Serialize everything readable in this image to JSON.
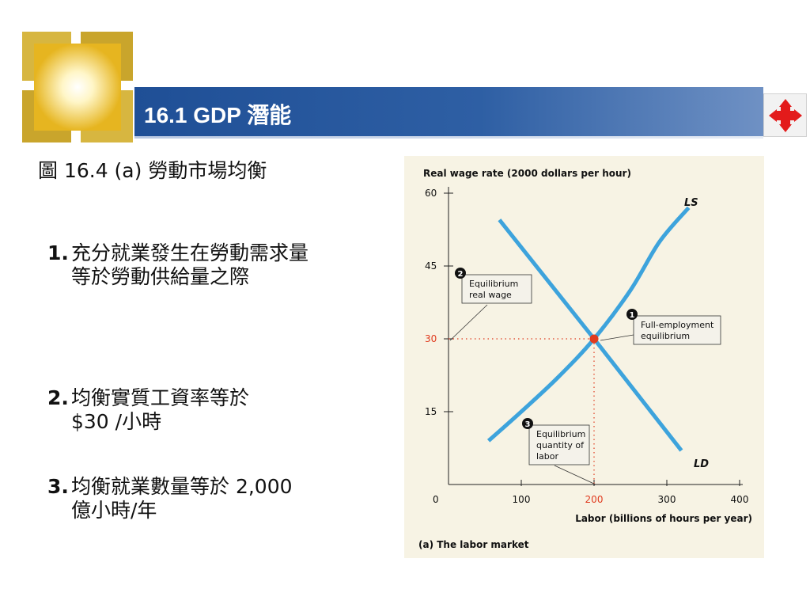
{
  "header": {
    "title": "16.1 GDP 潛能"
  },
  "caption": "圖 16.4 (a) 勞動市場均衡",
  "points": [
    {
      "num": "1.",
      "lines": [
        "充分就業發生在勞動需求量",
        "等於勞動供給量之際"
      ]
    },
    {
      "num": "2.",
      "lines": [
        "均衡實質工資率等於",
        "$30 /小時"
      ]
    },
    {
      "num": "3.",
      "lines": [
        "均衡就業數量等於 2,000",
        "億小時/年"
      ]
    }
  ],
  "colors": {
    "accent_blue": "#3da3dc",
    "eq_red": "#e03a1e",
    "panel_bg": "#f7f3e4",
    "header": "#2e5fa4"
  },
  "chart_data": {
    "type": "line",
    "title": "Real wage rate (2000 dollars per hour)",
    "xlabel": "Labor (billions of hours per year)",
    "panel_label": "(a) The labor market",
    "xlim": [
      0,
      400
    ],
    "ylim": [
      0,
      60
    ],
    "x_ticks": [
      0,
      100,
      200,
      300,
      400
    ],
    "y_ticks": [
      15,
      30,
      45,
      60
    ],
    "highlight_x_tick": "200",
    "highlight_y_tick": "30",
    "series": [
      {
        "name": "LS",
        "type": "curve",
        "points": [
          [
            55,
            9
          ],
          [
            100,
            15
          ],
          [
            150,
            22
          ],
          [
            200,
            30
          ],
          [
            250,
            40
          ],
          [
            290,
            50
          ],
          [
            330,
            57
          ]
        ]
      },
      {
        "name": "LD",
        "type": "line",
        "points": [
          [
            70,
            54.5
          ],
          [
            200,
            30
          ],
          [
            320,
            7
          ]
        ]
      }
    ],
    "equilibrium": {
      "x": 200,
      "y": 30
    },
    "annotations": [
      {
        "marker": "1",
        "lines": [
          "Full-employment",
          "equilibrium"
        ]
      },
      {
        "marker": "2",
        "lines": [
          "Equilibrium",
          "real wage"
        ]
      },
      {
        "marker": "3",
        "lines": [
          "Equilibrium",
          "quantity of",
          "labor"
        ]
      }
    ]
  }
}
